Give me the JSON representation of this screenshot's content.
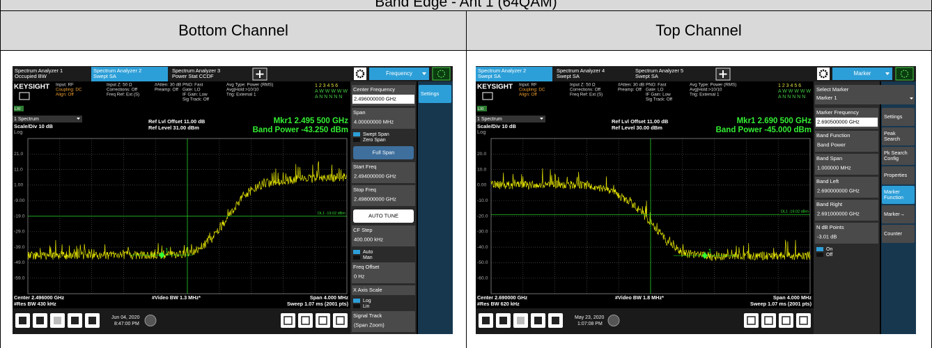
{
  "title": "Band Edge - Ant 1 (64QAM)",
  "panels": [
    {
      "heading": "Bottom Channel",
      "screen": {
        "active_tab": 1,
        "tabs": [
          [
            "Spectrum Analyzer 1",
            "Occupied BW"
          ],
          [
            "Spectrum Analyzer 2",
            "Swept SA"
          ],
          [
            "Spectrum Analyzer 3",
            "Power Stat CCDF"
          ]
        ],
        "menu_title": "Frequency",
        "brand": "KEYSIGHT",
        "lxi": "LXI",
        "info": [
          [
            "Input: RF",
            {
              "text": "Coupling: DC",
              "color": "#f0a030"
            },
            {
              "text": "Align: Off",
              "color": "#f0a030"
            }
          ],
          [
            "Input Z: 50 Ω",
            "Corrections: Off",
            "Freq Ref: Ext (S)"
          ],
          [
            "#Atten: 30 dB",
            "Preamp: Off"
          ],
          [
            "PNO: Fast",
            "Gate: LO",
            "IF Gain: Low",
            "Sig Track: Off"
          ],
          [
            "Avg Type: Power (RMS)",
            "Avg|Hold:>10/10",
            "Trig: External 1"
          ]
        ],
        "trace_info": [
          "1 2 3 4 5 6",
          "A W W W W W",
          "A N N N N N"
        ],
        "window": "1 Spectrum",
        "scale": "Scale/Div 10 dB",
        "log": "Log",
        "ref_offset": "Ref Lvl Offset 11.00 dB",
        "ref_level": "Ref Level 31.00 dBm",
        "marker": "Mkr1  2.495 500 GHz",
        "band_power": "Band Power  -43.250 dBm",
        "yticks": [
          "21.0",
          "11.0",
          "1.00",
          "-9.00",
          "-19.0",
          "-29.0",
          "-39.0",
          "-49.0",
          "-59.0"
        ],
        "display_line": "DL1 -19.02 dBm",
        "marker_id": "1",
        "footer": {
          "center": "Center 2.496000 GHz",
          "res_bw": "#Res BW 430 kHz",
          "video_bw": "#Video BW 1.3 MHz*",
          "span": "Span 4.000 MHz",
          "sweep": "Sweep 1.07 ms (2001 pts)"
        },
        "date": "Jun 04, 2020",
        "time": "8:47:00 PM",
        "menu": [
          {
            "label": "Center Frequency",
            "value": "2.496000000 GHz",
            "selected": true
          },
          {
            "label": "Span",
            "value": "4.00000000 MHz"
          },
          {
            "toggle": [
              "Swept Span",
              "Zero Span"
            ]
          },
          {
            "button": "Full Span",
            "color": "#3f6f9c"
          },
          {
            "label": "Start Freq",
            "value": "2.494000000 GHz"
          },
          {
            "label": "Stop Freq",
            "value": "2.498000000 GHz"
          },
          {
            "button": "AUTO TUNE",
            "color": "#ffffff"
          },
          {
            "label": "CF Step",
            "value": "400.000 kHz"
          },
          {
            "toggle": [
              "Auto",
              "Man"
            ]
          },
          {
            "label": "Freq Offset",
            "value": "0 Hz"
          },
          {
            "label": "X Axis Scale"
          },
          {
            "toggle": [
              "Log",
              "Lin"
            ]
          },
          {
            "label": "Signal Track",
            "value": "(Span Zoom)"
          }
        ],
        "softkeys": [
          [
            "Settings"
          ]
        ],
        "active_softkey": 0
      }
    },
    {
      "heading": "Top Channel",
      "screen": {
        "active_tab": 0,
        "tabs": [
          [
            "Spectrum Analyzer 2",
            "Swept SA"
          ],
          [
            "Spectrum Analyzer 4",
            "Swept SA"
          ],
          [
            "Spectrum Analyzer 5",
            "Swept SA"
          ]
        ],
        "menu_title": "Marker",
        "brand": "KEYSIGHT",
        "lxi": "LXI",
        "info": [
          [
            "Input: RF",
            {
              "text": "Coupling: DC",
              "color": "#f0a030"
            },
            {
              "text": "Align: Off",
              "color": "#f0a030"
            }
          ],
          [
            "Input Z: 50 Ω",
            "Corrections: Off",
            "Freq Ref: Ext (S)"
          ],
          [
            "#Atten: 30 dB",
            "Preamp: Off"
          ],
          [
            "PNO: Fast",
            "Gate: LO",
            "IF Gain: Low",
            "Sig Track: Off"
          ],
          [
            "Avg Type: Power (RMS)",
            "Avg|Hold:>10/10",
            "Trig: External 1"
          ]
        ],
        "trace_info": [
          "1 2 3 4 5 6",
          "A W W W W W",
          "A N N N N N"
        ],
        "window": "1 Spectrum",
        "scale": "Scale/Div 10 dB",
        "log": "Log",
        "ref_offset": "Ref Lvl Offset 11.00 dB",
        "ref_level": "Ref Level 30.00 dBm",
        "marker": "Mkr1  2.690 500 GHz",
        "band_power": "Band Power  -45.000 dBm",
        "yticks": [
          "20.0",
          "10.0",
          "0.00",
          "-10.0",
          "-20.0",
          "-30.0",
          "-40.0",
          "-50.0",
          "-60.0"
        ],
        "display_line": "DL1 -19.02 dBm",
        "marker_id": "1",
        "footer": {
          "center": "Center 2.690000 GHz",
          "res_bw": "#Res BW 620 kHz",
          "video_bw": "#Video BW 1.8 MHz*",
          "span": "Span 4.000 MHz",
          "sweep": "Sweep 1.07 ms (2001 pts)"
        },
        "date": "May 23, 2020",
        "time": "1:07:08 PM",
        "selector": {
          "label": "Select Marker",
          "value": "Marker 1"
        },
        "menu": [
          {
            "label": "Marker Frequency",
            "value": "2.690500000 GHz",
            "selected": true
          },
          {
            "label": "Band Function",
            "value": "Band Power"
          },
          {
            "label": "Band Span",
            "value": "1.000000 MHz"
          },
          {
            "label": "Band Left",
            "value": "2.690000000 GHz"
          },
          {
            "label": "Band Right",
            "value": "2.691000000 GHz"
          },
          {
            "label": "N dB Points",
            "value": "-3.01 dB"
          },
          {
            "toggle": [
              "On",
              "Off"
            ]
          }
        ],
        "softkeys": [
          [
            "Settings"
          ],
          [
            "Peak",
            "Search"
          ],
          [
            "Pk Search",
            "Config"
          ],
          [
            "Properties"
          ],
          [
            "Marker",
            "Function"
          ],
          [
            "Marker→"
          ],
          [
            "Counter"
          ]
        ],
        "active_softkey": 4
      }
    }
  ]
}
